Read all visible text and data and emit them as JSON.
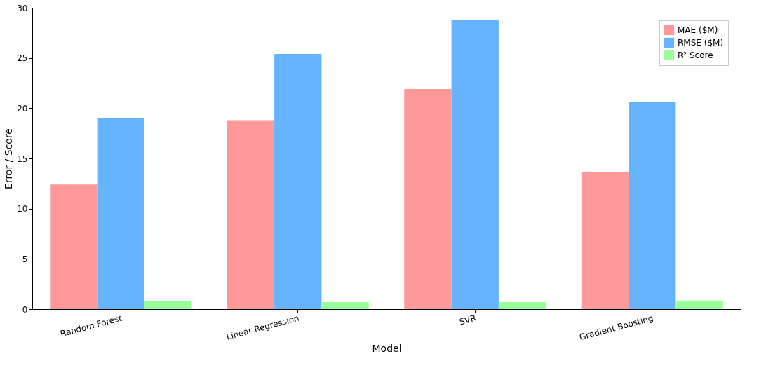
{
  "chart_data": {
    "type": "bar",
    "xlabel": "Model",
    "ylabel": "Error / Score",
    "categories": [
      "Random Forest",
      "Linear Regression",
      "SVR",
      "Gradient Boosting"
    ],
    "series": [
      {
        "name": "MAE ($M)",
        "color": "#ff9999",
        "values": [
          12.4,
          18.8,
          21.9,
          13.6
        ]
      },
      {
        "name": "RMSE ($M)",
        "color": "#66b3ff",
        "values": [
          19.0,
          25.4,
          28.8,
          20.6
        ]
      },
      {
        "name": "R² Score",
        "color": "#99ff99",
        "values": [
          0.82,
          0.7,
          0.7,
          0.85
        ]
      }
    ],
    "ylim": [
      0,
      30
    ],
    "yticks": [
      0,
      5,
      10,
      15,
      20,
      25,
      30
    ],
    "grid": false,
    "legend": "top right"
  }
}
